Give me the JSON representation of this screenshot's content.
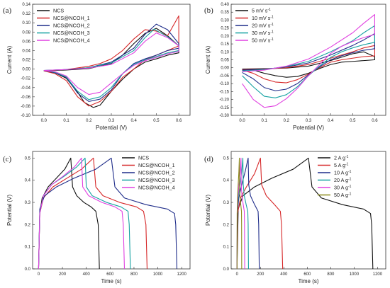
{
  "chart_data": [
    {
      "panel": "(a)",
      "type": "line",
      "xlabel": "Potential (V)",
      "ylabel": "Current (A)",
      "xlim": [
        -0.05,
        0.65
      ],
      "ylim": [
        -0.1,
        0.14
      ],
      "xticks": [
        0.0,
        0.1,
        0.2,
        0.3,
        0.4,
        0.5,
        0.6
      ],
      "yticks": [
        -0.1,
        -0.08,
        -0.06,
        -0.04,
        -0.02,
        0.0,
        0.02,
        0.04,
        0.06,
        0.08,
        0.1,
        0.12,
        0.14
      ],
      "xtick_labels": [
        "0.0",
        "0.1",
        "0.2",
        "0.3",
        "0.4",
        "0.5",
        "0.6"
      ],
      "ytick_labels": [
        "-0.10",
        "-0.08",
        "-0.06",
        "-0.04",
        "-0.02",
        "0.00",
        "0.02",
        "0.04",
        "0.06",
        "0.08",
        "0.10",
        "0.12",
        "0.14"
      ],
      "legend_position": "top-left",
      "series": [
        {
          "name": "NCS",
          "color": "#111111",
          "x": [
            0.0,
            0.1,
            0.2,
            0.3,
            0.35,
            0.4,
            0.45,
            0.5,
            0.55,
            0.6,
            0.6,
            0.55,
            0.5,
            0.45,
            0.4,
            0.35,
            0.3,
            0.25,
            0.22,
            0.18,
            0.15,
            0.1,
            0.05,
            0.0
          ],
          "y": [
            -0.004,
            -0.002,
            0.001,
            0.012,
            0.03,
            0.055,
            0.077,
            0.088,
            0.072,
            0.05,
            0.035,
            0.03,
            0.022,
            0.015,
            0.0,
            -0.022,
            -0.048,
            -0.078,
            -0.083,
            -0.072,
            -0.05,
            -0.02,
            -0.008,
            -0.004
          ]
        },
        {
          "name": "NCS@NCOH_1",
          "color": "#d62728",
          "x": [
            0.0,
            0.1,
            0.2,
            0.25,
            0.3,
            0.35,
            0.4,
            0.45,
            0.5,
            0.55,
            0.6,
            0.6,
            0.55,
            0.5,
            0.45,
            0.4,
            0.35,
            0.3,
            0.25,
            0.2,
            0.15,
            0.1,
            0.05,
            0.0
          ],
          "y": [
            -0.004,
            -0.001,
            0.006,
            0.012,
            0.022,
            0.04,
            0.065,
            0.085,
            0.082,
            0.072,
            0.115,
            0.05,
            0.04,
            0.03,
            0.02,
            0.0,
            -0.018,
            -0.048,
            -0.07,
            -0.08,
            -0.06,
            -0.025,
            -0.01,
            -0.004
          ]
        },
        {
          "name": "NCS@NCOH_2",
          "color": "#1f2d8a",
          "x": [
            0.0,
            0.1,
            0.2,
            0.3,
            0.4,
            0.45,
            0.5,
            0.55,
            0.6,
            0.6,
            0.55,
            0.5,
            0.45,
            0.4,
            0.35,
            0.3,
            0.25,
            0.2,
            0.15,
            0.1,
            0.05,
            0.0
          ],
          "y": [
            -0.003,
            -0.001,
            0.003,
            0.015,
            0.045,
            0.075,
            0.097,
            0.085,
            0.055,
            0.045,
            0.04,
            0.03,
            0.022,
            0.012,
            -0.01,
            -0.045,
            -0.065,
            -0.07,
            -0.052,
            -0.018,
            -0.008,
            -0.003
          ]
        },
        {
          "name": "NCS@NCOH_3",
          "color": "#17a2a2",
          "x": [
            0.0,
            0.1,
            0.2,
            0.3,
            0.4,
            0.45,
            0.49,
            0.55,
            0.6,
            0.6,
            0.55,
            0.5,
            0.45,
            0.4,
            0.35,
            0.3,
            0.25,
            0.2,
            0.15,
            0.1,
            0.05,
            0.0
          ],
          "y": [
            -0.003,
            -0.001,
            0.003,
            0.013,
            0.04,
            0.068,
            0.086,
            0.07,
            0.05,
            0.04,
            0.035,
            0.027,
            0.02,
            0.01,
            -0.01,
            -0.04,
            -0.06,
            -0.066,
            -0.048,
            -0.017,
            -0.007,
            -0.003
          ]
        },
        {
          "name": "NCS@NCOH_4",
          "color": "#e040e0",
          "x": [
            0.0,
            0.1,
            0.2,
            0.3,
            0.4,
            0.45,
            0.5,
            0.55,
            0.6,
            0.6,
            0.55,
            0.5,
            0.45,
            0.4,
            0.35,
            0.3,
            0.25,
            0.2,
            0.15,
            0.1,
            0.05,
            0.0
          ],
          "y": [
            -0.003,
            -0.001,
            0.002,
            0.01,
            0.035,
            0.06,
            0.078,
            0.068,
            0.05,
            0.038,
            0.033,
            0.025,
            0.018,
            0.008,
            -0.01,
            -0.03,
            -0.05,
            -0.055,
            -0.04,
            -0.015,
            -0.006,
            -0.003
          ]
        }
      ]
    },
    {
      "panel": "(b)",
      "type": "line",
      "xlabel": "Potential (V)",
      "ylabel": "Current (A)",
      "xlim": [
        -0.05,
        0.65
      ],
      "ylim": [
        -0.3,
        0.4
      ],
      "xticks": [
        0.0,
        0.1,
        0.2,
        0.3,
        0.4,
        0.5,
        0.6
      ],
      "yticks": [
        -0.3,
        -0.25,
        -0.2,
        -0.15,
        -0.1,
        -0.05,
        0.0,
        0.05,
        0.1,
        0.15,
        0.2,
        0.25,
        0.3,
        0.35,
        0.4
      ],
      "xtick_labels": [
        "0.0",
        "0.1",
        "0.2",
        "0.3",
        "0.4",
        "0.5",
        "0.6"
      ],
      "ytick_labels": [
        "-0.30",
        "-0.25",
        "-0.20",
        "-0.15",
        "-0.10",
        "-0.05",
        "0.00",
        "0.05",
        "0.10",
        "0.15",
        "0.20",
        "0.25",
        "0.30",
        "0.35",
        "0.40"
      ],
      "legend_position": "top-left",
      "series": [
        {
          "name": "5 mV s",
          "name_sup": "-1",
          "color": "#111111",
          "x": [
            0.0,
            0.1,
            0.2,
            0.3,
            0.4,
            0.5,
            0.55,
            0.6,
            0.6,
            0.55,
            0.5,
            0.45,
            0.4,
            0.35,
            0.3,
            0.25,
            0.2,
            0.15,
            0.1,
            0.05,
            0.0
          ],
          "y": [
            -0.008,
            -0.006,
            -0.002,
            0.01,
            0.045,
            0.088,
            0.1,
            0.07,
            0.05,
            0.045,
            0.04,
            0.035,
            0.02,
            -0.005,
            -0.035,
            -0.055,
            -0.06,
            -0.05,
            -0.035,
            -0.015,
            -0.008
          ]
        },
        {
          "name": "10 mV s",
          "name_sup": "-1",
          "color": "#d62728",
          "x": [
            0.0,
            0.1,
            0.2,
            0.3,
            0.4,
            0.5,
            0.55,
            0.6,
            0.6,
            0.55,
            0.5,
            0.45,
            0.4,
            0.35,
            0.3,
            0.25,
            0.2,
            0.15,
            0.1,
            0.05,
            0.0
          ],
          "y": [
            -0.012,
            -0.008,
            0.0,
            0.02,
            0.06,
            0.1,
            0.125,
            0.14,
            0.075,
            0.07,
            0.06,
            0.05,
            0.035,
            0.0,
            -0.04,
            -0.075,
            -0.095,
            -0.09,
            -0.07,
            -0.035,
            -0.015
          ]
        },
        {
          "name": "20 mV s",
          "name_sup": "-1",
          "color": "#1f2d8a",
          "x": [
            0.0,
            0.1,
            0.2,
            0.3,
            0.4,
            0.5,
            0.55,
            0.6,
            0.6,
            0.55,
            0.5,
            0.45,
            0.4,
            0.35,
            0.3,
            0.25,
            0.2,
            0.15,
            0.1,
            0.05,
            0.0
          ],
          "y": [
            -0.015,
            -0.01,
            0.005,
            0.03,
            0.08,
            0.14,
            0.175,
            0.215,
            0.12,
            0.11,
            0.095,
            0.075,
            0.05,
            0.005,
            -0.045,
            -0.1,
            -0.135,
            -0.145,
            -0.125,
            -0.07,
            -0.03
          ]
        },
        {
          "name": "30 mV s",
          "name_sup": "-1",
          "color": "#17a2a2",
          "x": [
            0.0,
            0.1,
            0.2,
            0.3,
            0.4,
            0.5,
            0.55,
            0.6,
            0.6,
            0.55,
            0.5,
            0.45,
            0.4,
            0.35,
            0.3,
            0.25,
            0.2,
            0.15,
            0.1,
            0.05,
            0.0
          ],
          "y": [
            -0.02,
            -0.012,
            0.008,
            0.04,
            0.1,
            0.17,
            0.22,
            0.265,
            0.16,
            0.145,
            0.125,
            0.1,
            0.065,
            0.01,
            -0.05,
            -0.12,
            -0.17,
            -0.19,
            -0.18,
            -0.12,
            -0.05
          ]
        },
        {
          "name": "50 mV s",
          "name_sup": "-1",
          "color": "#e040e0",
          "x": [
            0.0,
            0.1,
            0.2,
            0.3,
            0.4,
            0.5,
            0.55,
            0.6,
            0.6,
            0.55,
            0.5,
            0.45,
            0.4,
            0.35,
            0.3,
            0.25,
            0.2,
            0.15,
            0.1,
            0.05,
            0.0
          ],
          "y": [
            -0.025,
            -0.015,
            0.01,
            0.055,
            0.13,
            0.22,
            0.28,
            0.335,
            0.21,
            0.19,
            0.165,
            0.135,
            0.09,
            0.02,
            -0.05,
            -0.13,
            -0.195,
            -0.24,
            -0.25,
            -0.2,
            -0.1
          ]
        }
      ]
    },
    {
      "panel": "(c)",
      "type": "line",
      "xlabel": "Time (s)",
      "ylabel": "Potential (V)",
      "xlim": [
        -50,
        1270
      ],
      "ylim": [
        0.0,
        0.53
      ],
      "xticks": [
        0,
        200,
        400,
        600,
        800,
        1000,
        1200
      ],
      "yticks": [
        0.0,
        0.1,
        0.2,
        0.3,
        0.4,
        0.5
      ],
      "xtick_labels": [
        "0",
        "200",
        "400",
        "600",
        "800",
        "1000",
        "1200"
      ],
      "ytick_labels": [
        "0.0",
        "0.1",
        "0.2",
        "0.3",
        "0.4",
        "0.5"
      ],
      "legend_position": "top-right",
      "series": [
        {
          "name": "NCS",
          "color": "#111111",
          "x": [
            0,
            10,
            30,
            80,
            150,
            220,
            270,
            285,
            320,
            380,
            440,
            480,
            500,
            510
          ],
          "y": [
            0.0,
            0.25,
            0.32,
            0.37,
            0.41,
            0.45,
            0.5,
            0.37,
            0.33,
            0.3,
            0.28,
            0.26,
            0.2,
            0.0
          ]
        },
        {
          "name": "NCS@NCOH_1",
          "color": "#d62728",
          "x": [
            0,
            10,
            40,
            120,
            240,
            360,
            460,
            480,
            540,
            680,
            820,
            880,
            900,
            910
          ],
          "y": [
            0.0,
            0.25,
            0.32,
            0.37,
            0.41,
            0.45,
            0.5,
            0.37,
            0.33,
            0.3,
            0.28,
            0.26,
            0.2,
            0.0
          ]
        },
        {
          "name": "NCS@NCOH_2",
          "color": "#1f2d8a",
          "x": [
            0,
            10,
            50,
            150,
            300,
            480,
            610,
            640,
            720,
            900,
            1080,
            1140,
            1150,
            1160
          ],
          "y": [
            0.0,
            0.27,
            0.33,
            0.37,
            0.41,
            0.45,
            0.5,
            0.37,
            0.32,
            0.29,
            0.27,
            0.25,
            0.2,
            0.0
          ]
        },
        {
          "name": "NCS@NCOH_3",
          "color": "#17a2a2",
          "x": [
            0,
            10,
            40,
            110,
            220,
            320,
            390,
            400,
            450,
            570,
            690,
            750,
            760,
            770
          ],
          "y": [
            0.0,
            0.25,
            0.33,
            0.38,
            0.42,
            0.46,
            0.5,
            0.37,
            0.33,
            0.3,
            0.28,
            0.26,
            0.2,
            0.0
          ]
        },
        {
          "name": "NCS@NCOH_4",
          "color": "#e040e0",
          "x": [
            0,
            10,
            40,
            110,
            210,
            300,
            360,
            370,
            420,
            530,
            640,
            700,
            710,
            720
          ],
          "y": [
            0.0,
            0.25,
            0.33,
            0.38,
            0.42,
            0.46,
            0.5,
            0.37,
            0.33,
            0.3,
            0.28,
            0.26,
            0.2,
            0.0
          ]
        }
      ]
    },
    {
      "panel": "(d)",
      "type": "line",
      "xlabel": "Time (s)",
      "ylabel": "Potential (V)",
      "xlim": [
        -50,
        1270
      ],
      "ylim": [
        0.0,
        0.53
      ],
      "xticks": [
        0,
        200,
        400,
        600,
        800,
        1000,
        1200
      ],
      "yticks": [
        0.0,
        0.1,
        0.2,
        0.3,
        0.4,
        0.5
      ],
      "xtick_labels": [
        "0",
        "200",
        "400",
        "600",
        "800",
        "1000",
        "1200"
      ],
      "ytick_labels": [
        "0.0",
        "0.1",
        "0.2",
        "0.3",
        "0.4",
        "0.5"
      ],
      "legend_position": "top-right",
      "series": [
        {
          "name": "2 A g",
          "name_sup": "-1",
          "color": "#111111",
          "x": [
            0,
            10,
            50,
            150,
            300,
            480,
            610,
            640,
            720,
            900,
            1080,
            1140,
            1150,
            1160
          ],
          "y": [
            0.0,
            0.27,
            0.33,
            0.37,
            0.41,
            0.45,
            0.5,
            0.37,
            0.32,
            0.29,
            0.27,
            0.25,
            0.2,
            0.0
          ]
        },
        {
          "name": "5 A g",
          "name_sup": "-1",
          "color": "#d62728",
          "x": [
            0,
            5,
            30,
            80,
            150,
            200,
            210,
            250,
            320,
            370,
            380,
            390
          ],
          "y": [
            0.0,
            0.25,
            0.32,
            0.37,
            0.43,
            0.5,
            0.38,
            0.33,
            0.29,
            0.26,
            0.2,
            0.0
          ]
        },
        {
          "name": "10 A g",
          "name_sup": "-1",
          "color": "#1f2d8a",
          "x": [
            0,
            3,
            15,
            40,
            70,
            95,
            100,
            115,
            150,
            180,
            185,
            190
          ],
          "y": [
            0.0,
            0.25,
            0.32,
            0.38,
            0.44,
            0.5,
            0.38,
            0.33,
            0.29,
            0.26,
            0.2,
            0.0
          ]
        },
        {
          "name": "20 A g",
          "name_sup": "-1",
          "color": "#17a2a2",
          "x": [
            0,
            2,
            10,
            25,
            40,
            50,
            53,
            62,
            78,
            92,
            95,
            98
          ],
          "y": [
            0.0,
            0.25,
            0.32,
            0.38,
            0.44,
            0.5,
            0.38,
            0.33,
            0.29,
            0.26,
            0.2,
            0.0
          ]
        },
        {
          "name": "30 A g",
          "name_sup": "-1",
          "color": "#e040e0",
          "x": [
            0,
            2,
            7,
            17,
            27,
            34,
            36,
            42,
            53,
            62,
            64,
            66
          ],
          "y": [
            0.0,
            0.25,
            0.32,
            0.38,
            0.44,
            0.5,
            0.38,
            0.33,
            0.29,
            0.26,
            0.2,
            0.0
          ]
        },
        {
          "name": "50 A g",
          "name_sup": "-1",
          "color": "#8a8a1a",
          "x": [
            0,
            1,
            4,
            10,
            16,
            20,
            21,
            25,
            32,
            38,
            39,
            40
          ],
          "y": [
            0.0,
            0.25,
            0.32,
            0.38,
            0.44,
            0.5,
            0.38,
            0.33,
            0.29,
            0.26,
            0.2,
            0.0
          ]
        }
      ]
    }
  ]
}
